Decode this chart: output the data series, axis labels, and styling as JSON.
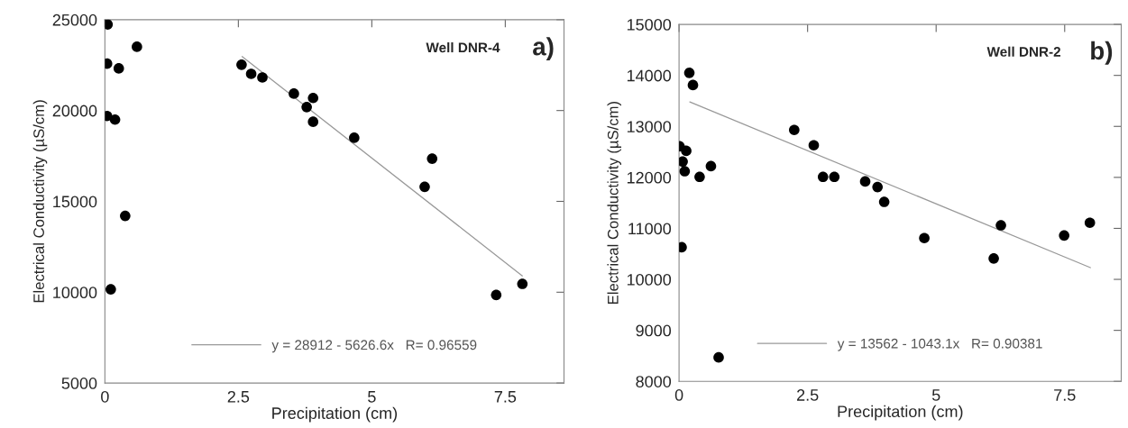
{
  "chart_data": [
    {
      "type": "scatter",
      "xlabel": "Precipitation (cm)",
      "ylabel": "Electrical Conductivity (µS/cm)",
      "xlim": [
        0,
        8.6
      ],
      "ylim": [
        5000,
        25000
      ],
      "xticks": [
        0,
        2.5,
        5,
        7.5
      ],
      "yticks": [
        5000,
        10000,
        15000,
        20000,
        25000
      ],
      "grid": false,
      "legend": "bottom",
      "annotations": [
        "Well DNR-4",
        "a)"
      ],
      "series": [
        {
          "color": "#000000",
          "marker": "circle",
          "x": [
            0.05,
            0.6,
            0.04,
            0.26,
            0.04,
            0.19,
            0.38,
            0.11,
            2.56,
            2.74,
            2.95,
            3.54,
            3.9,
            3.78,
            3.9,
            4.67,
            5.99,
            6.13,
            7.33,
            7.82
          ],
          "values": [
            24740,
            23510,
            22580,
            22320,
            19700,
            19500,
            14200,
            10160,
            22520,
            22020,
            21820,
            20930,
            20690,
            20190,
            19380,
            18500,
            15800,
            17350,
            9850,
            10460
          ]
        },
        {
          "type": "line",
          "name": "y = 28912 - 5626.6x   R= 0.96559",
          "color": "#999999",
          "marker": "none",
          "x": [
            2.57,
            7.82
          ],
          "values": [
            22970,
            10900
          ]
        }
      ]
    },
    {
      "type": "scatter",
      "xlabel": "Precipitation (cm)",
      "ylabel": "Electrical Conductivity (µS/cm)",
      "xlim": [
        0,
        8.6
      ],
      "ylim": [
        8000,
        15000
      ],
      "xticks": [
        0,
        2.5,
        5,
        7.5
      ],
      "yticks": [
        8000,
        9000,
        10000,
        11000,
        12000,
        13000,
        14000,
        15000
      ],
      "grid": false,
      "legend": "bottom",
      "annotations": [
        "Well DNR-2",
        "b)"
      ],
      "series": [
        {
          "color": "#000000",
          "marker": "circle",
          "x": [
            0.01,
            0.14,
            0.07,
            0.11,
            0.05,
            0.2,
            0.27,
            0.4,
            0.62,
            0.77,
            2.24,
            2.62,
            2.8,
            3.02,
            3.62,
            3.86,
            3.99,
            4.77,
            6.12,
            6.26,
            7.49,
            7.99
          ],
          "values": [
            12610,
            12520,
            12310,
            12120,
            10630,
            14050,
            13810,
            12010,
            12220,
            8470,
            12930,
            12630,
            12010,
            12010,
            11920,
            11810,
            11520,
            10810,
            10410,
            11060,
            10860,
            11110
          ]
        },
        {
          "type": "line",
          "name": "y = 13562 - 1043.1x   R= 0.90381",
          "color": "#999999",
          "marker": "none",
          "x": [
            0.21,
            8.0
          ],
          "values": [
            13480,
            10230
          ]
        }
      ]
    }
  ]
}
